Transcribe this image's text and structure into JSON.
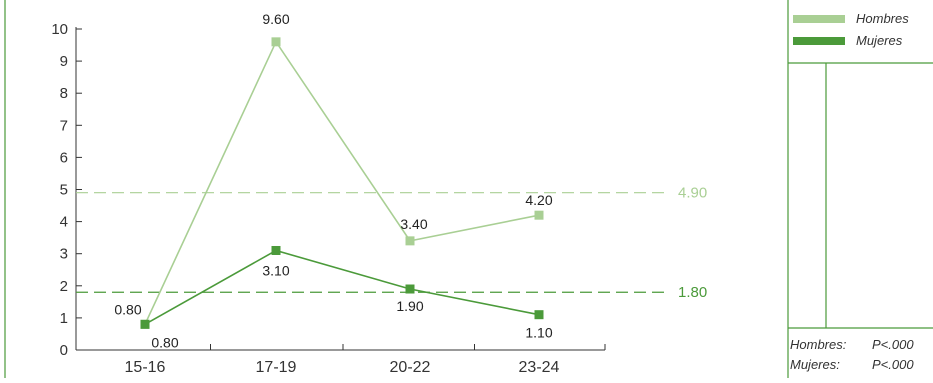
{
  "chart_data": {
    "type": "line",
    "categories": [
      "15-16",
      "17-19",
      "20-22",
      "23-24"
    ],
    "ylim": [
      0,
      10
    ],
    "yticks": [
      0,
      1,
      2,
      3,
      4,
      5,
      6,
      7,
      8,
      9,
      10
    ],
    "series": [
      {
        "name": "Hombres",
        "color": "#a9cf94",
        "values": [
          0.8,
          9.6,
          3.4,
          4.2
        ],
        "labels": [
          "0.80",
          "9.60",
          "3.40",
          "4.20"
        ],
        "reference_line": 4.9,
        "reference_label": "4.90"
      },
      {
        "name": "Mujeres",
        "color": "#4b9a3a",
        "values": [
          0.8,
          3.1,
          1.9,
          1.1
        ],
        "labels": [
          "0.80",
          "3.10",
          "1.90",
          "1.10"
        ],
        "reference_line": 1.8,
        "reference_label": "1.80"
      }
    ],
    "legend": {
      "placement": "top-right",
      "entries": [
        "Hombres",
        "Mujeres"
      ]
    },
    "notes": [
      {
        "label": "Hombres:",
        "value": "P<.000"
      },
      {
        "label": "Mujeres:",
        "value": "P<.000"
      }
    ]
  }
}
